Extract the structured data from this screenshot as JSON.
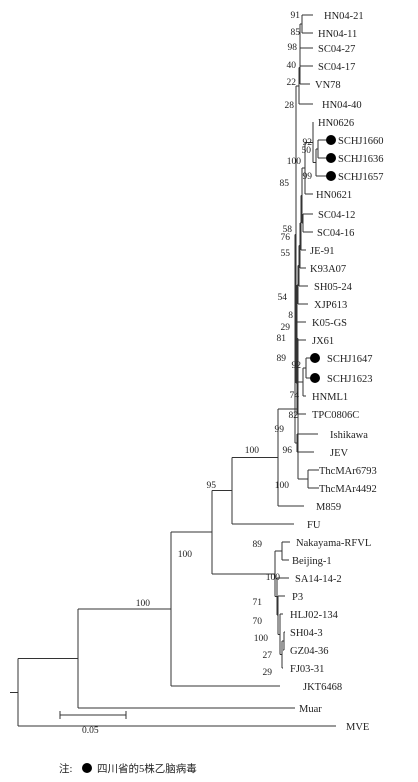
{
  "tree": {
    "taxa": [
      "HN04-21",
      "HN04-11",
      "SC04-27",
      "SC04-17",
      "VN78",
      "HN04-40",
      "HN0626",
      "SCHJ1660",
      "SCHJ1636",
      "SCHJ1657",
      "HN0621",
      "SC04-12",
      "SC04-16",
      "JE-91",
      "K93A07",
      "SH05-24",
      "XJP613",
      "K05-GS",
      "JX61",
      "SCHJ1647",
      "SCHJ1623",
      "HNML1",
      "TPC0806C",
      "Ishikawa",
      "JEV",
      "ThcMAr6793",
      "ThcMAr4492",
      "M859",
      "FU",
      "Nakayama-RFVL",
      "Beijing-1",
      "SA14-14-2",
      "P3",
      "HLJ02-134",
      "SH04-3",
      "GZ04-36",
      "FJ03-31",
      "JKT6468",
      "Muar",
      "MVE"
    ],
    "marked_taxa": [
      "SCHJ1660",
      "SCHJ1636",
      "SCHJ1657",
      "SCHJ1647",
      "SCHJ1623"
    ],
    "bootstrap_values": [
      "91",
      "85",
      "98",
      "40",
      "22",
      "28",
      "92",
      "50",
      "100",
      "99",
      "85",
      "58",
      "76",
      "55",
      "54",
      "8",
      "29",
      "81",
      "92",
      "89",
      "74",
      "82",
      "99",
      "96",
      "100",
      "100",
      "95",
      "100",
      "89",
      "100",
      "71",
      "70",
      "100",
      "27",
      "29",
      "100"
    ],
    "scale_bar": "0.05",
    "note": {
      "prefix": "注:",
      "text": "四川省的5株乙脑病毒"
    }
  }
}
